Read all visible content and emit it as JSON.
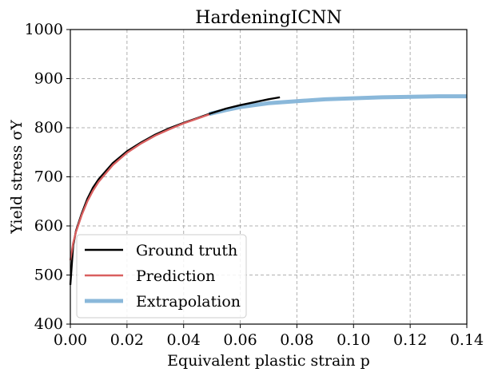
{
  "chart_data": {
    "type": "line",
    "title": "HardeningICNN",
    "xlabel": "Equivalent plastic strain p",
    "ylabel": "Yield stress σY",
    "xlim": [
      0.0,
      0.14
    ],
    "ylim": [
      400,
      1000
    ],
    "grid": true,
    "legend_position": "bottom-left",
    "x_ticks": [
      "0.00",
      "0.02",
      "0.04",
      "0.06",
      "0.08",
      "0.10",
      "0.12",
      "0.14"
    ],
    "x_tick_values": [
      0.0,
      0.02,
      0.04,
      0.06,
      0.08,
      0.1,
      0.12,
      0.14
    ],
    "y_ticks": [
      "400",
      "500",
      "600",
      "700",
      "800",
      "900",
      "1000"
    ],
    "y_tick_values": [
      400,
      500,
      600,
      700,
      800,
      900,
      1000
    ],
    "series": [
      {
        "name": "Ground truth",
        "color": "#000000",
        "x": [
          0.0,
          0.001,
          0.002,
          0.004,
          0.006,
          0.008,
          0.01,
          0.015,
          0.02,
          0.025,
          0.03,
          0.035,
          0.04,
          0.045,
          0.05,
          0.055,
          0.06,
          0.065,
          0.07,
          0.074
        ],
        "values": [
          480,
          560,
          590,
          625,
          655,
          678,
          695,
          728,
          752,
          770,
          786,
          799,
          810,
          820,
          830,
          839,
          846,
          852,
          858,
          862
        ]
      },
      {
        "name": "Prediction",
        "color": "#d95f5f",
        "x": [
          0.0,
          0.001,
          0.002,
          0.004,
          0.006,
          0.008,
          0.01,
          0.015,
          0.02,
          0.025,
          0.03,
          0.035,
          0.04,
          0.045,
          0.049
        ],
        "values": [
          530,
          565,
          588,
          622,
          650,
          672,
          690,
          724,
          749,
          768,
          784,
          797,
          809,
          819,
          827
        ]
      },
      {
        "name": "Extrapolation",
        "color": "#8ab8da",
        "x": [
          0.049,
          0.055,
          0.06,
          0.065,
          0.07,
          0.075,
          0.08,
          0.09,
          0.1,
          0.11,
          0.12,
          0.13,
          0.14
        ],
        "values": [
          828,
          836,
          842,
          846,
          850,
          852,
          854,
          858,
          860,
          862,
          863,
          864,
          864
        ]
      }
    ]
  }
}
